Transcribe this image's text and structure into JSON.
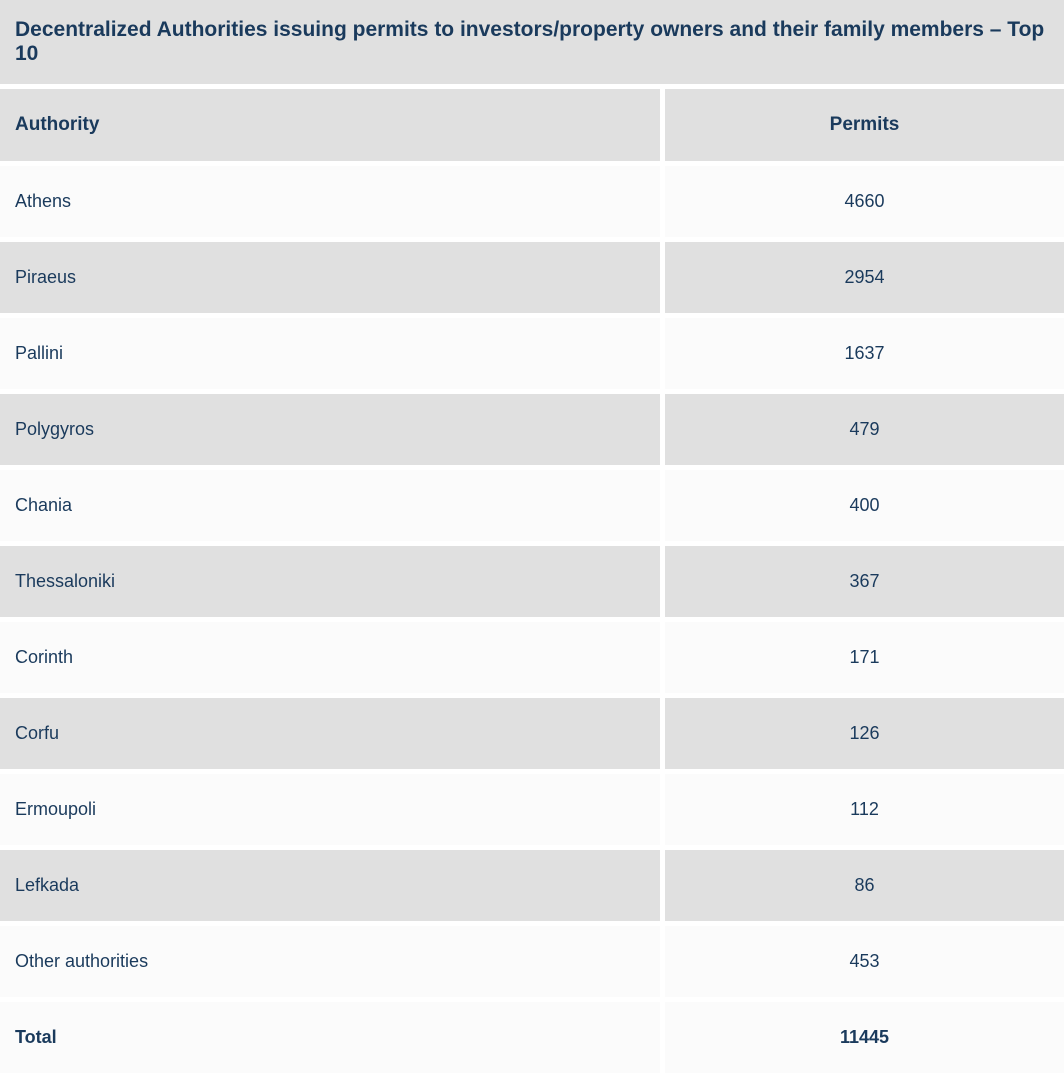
{
  "table": {
    "title": "Decentralized Authorities issuing permits to investors/property owners and their family members – Top 10",
    "columns": [
      "Authority",
      "Permits"
    ],
    "rows": [
      {
        "authority": "Athens",
        "permits": "4660"
      },
      {
        "authority": "Piraeus",
        "permits": "2954"
      },
      {
        "authority": "Pallini",
        "permits": "1637"
      },
      {
        "authority": "Polygyros",
        "permits": "479"
      },
      {
        "authority": "Chania",
        "permits": "400"
      },
      {
        "authority": "Thessaloniki",
        "permits": "367"
      },
      {
        "authority": "Corinth",
        "permits": "171"
      },
      {
        "authority": "Corfu",
        "permits": "126"
      },
      {
        "authority": "Ermoupoli",
        "permits": "112"
      },
      {
        "authority": "Lefkada",
        "permits": "86"
      },
      {
        "authority": "Other authorities",
        "permits": "453"
      }
    ],
    "total": {
      "label": "Total",
      "value": "11445"
    },
    "styling": {
      "title_bg": "#e0e0e0",
      "header_bg": "#e0e0e0",
      "row_odd_bg": "#fbfbfb",
      "row_even_bg": "#e0e0e0",
      "text_color": "#1a3a5c",
      "border_color": "#ffffff",
      "border_width": 5,
      "title_fontsize": 21,
      "header_fontsize": 19,
      "cell_fontsize": 18,
      "col_authority_width": 665,
      "authority_align": "left",
      "permits_align": "center"
    }
  }
}
